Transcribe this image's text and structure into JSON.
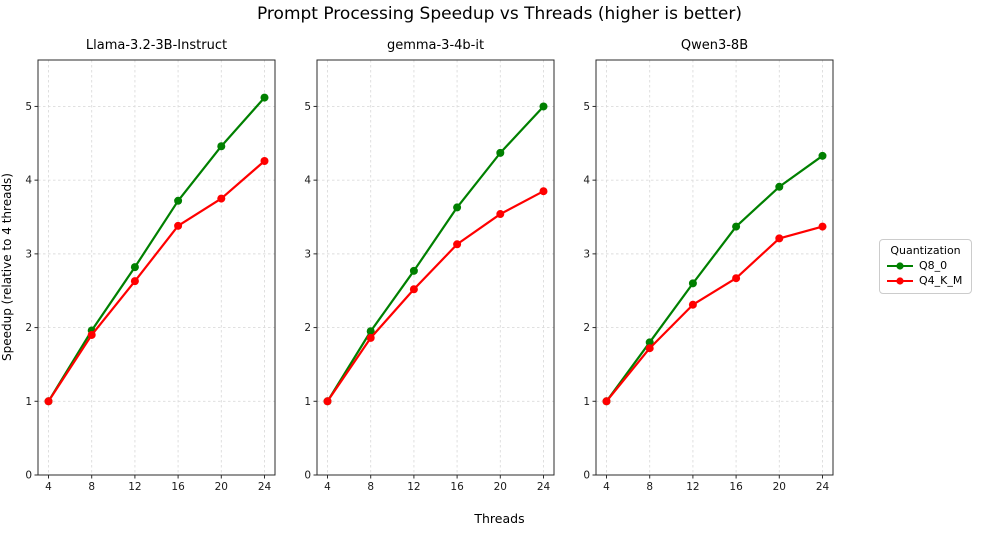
{
  "chart_data": {
    "type": "line",
    "title": "Prompt Processing Speedup vs Threads (higher is better)",
    "xlabel": "Threads",
    "ylabel": "Speedup (relative to 4 threads)",
    "x": [
      4,
      8,
      12,
      16,
      20,
      24
    ],
    "xticks": [
      4,
      8,
      12,
      16,
      20,
      24
    ],
    "yticks": [
      0,
      1,
      2,
      3,
      4,
      5
    ],
    "ylim": [
      0,
      5.63
    ],
    "grid": true,
    "legend": {
      "title": "Quantization",
      "position": "right-outside",
      "entries": [
        {
          "label": "Q8_0",
          "color": "#008000"
        },
        {
          "label": "Q4_K_M",
          "color": "#ff0000"
        }
      ]
    },
    "subplots": [
      {
        "title": "Llama-3.2-3B-Instruct",
        "series": [
          {
            "name": "Q8_0",
            "color": "#008000",
            "values": [
              1.0,
              1.96,
              2.82,
              3.72,
              4.46,
              5.12
            ]
          },
          {
            "name": "Q4_K_M",
            "color": "#ff0000",
            "values": [
              1.0,
              1.9,
              2.63,
              3.38,
              3.75,
              4.26
            ]
          }
        ]
      },
      {
        "title": "gemma-3-4b-it",
        "series": [
          {
            "name": "Q8_0",
            "color": "#008000",
            "values": [
              1.0,
              1.95,
              2.77,
              3.63,
              4.37,
              5.0
            ]
          },
          {
            "name": "Q4_K_M",
            "color": "#ff0000",
            "values": [
              1.0,
              1.86,
              2.52,
              3.13,
              3.54,
              3.85
            ]
          }
        ]
      },
      {
        "title": "Qwen3-8B",
        "series": [
          {
            "name": "Q8_0",
            "color": "#008000",
            "values": [
              1.0,
              1.8,
              2.6,
              3.37,
              3.91,
              4.33
            ]
          },
          {
            "name": "Q4_K_M",
            "color": "#ff0000",
            "values": [
              1.0,
              1.72,
              2.31,
              2.67,
              3.21,
              3.37
            ]
          }
        ]
      }
    ]
  }
}
